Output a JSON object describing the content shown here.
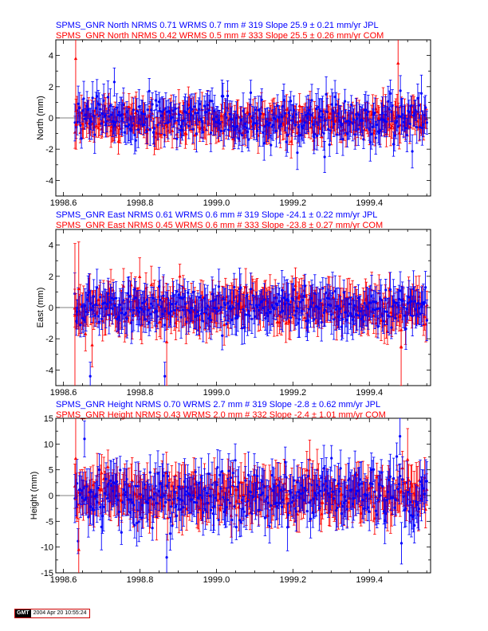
{
  "chart_data": [
    {
      "type": "scatter",
      "panel": "north",
      "header_lines": [
        {
          "text": "SPMS_GNR North NRMS 0.71 WRMS  0.7 mm # 319 Slope   25.9 ±  0.21 mm/yr JPL",
          "color": "#0000ff"
        },
        {
          "text": "SPMS_GNR North NRMS 0.42 WRMS  0.5 mm # 333 Slope   25.5 ±  0.26 mm/yr COM",
          "color": "#ff0000"
        }
      ],
      "ylabel": "North (mm)",
      "xlim": [
        1998.58,
        1999.56
      ],
      "ylim": [
        -5,
        5
      ],
      "x_ticks": [
        1998.6,
        1998.8,
        1999.0,
        1999.2,
        1999.4
      ],
      "x_tick_labels": [
        "1998.6",
        "1998.8",
        "1999.0",
        "1999.2",
        "1999.4"
      ],
      "y_ticks": [
        -4,
        -2,
        0,
        2,
        4
      ],
      "y_tick_labels": [
        "-4",
        "-2",
        "0",
        "2",
        "4"
      ],
      "grid": false,
      "series": [
        {
          "color": "#0000ff",
          "marker": "circle",
          "count": 319,
          "x_range": [
            1998.63,
            1999.55
          ],
          "y_mean": 0.0,
          "y_scatter": 0.7,
          "err_mean": 0.9
        },
        {
          "color": "#ff0000",
          "marker": "triangle",
          "count": 333,
          "x_range": [
            1998.63,
            1999.55
          ],
          "y_mean": -0.2,
          "y_scatter": 0.5,
          "err_mean": 0.85
        }
      ],
      "outliers": [
        {
          "x": 1998.632,
          "y": 3.8,
          "err": 3.4,
          "color": "#ff0000"
        },
        {
          "x": 1998.633,
          "y": -0.4,
          "err": 1.6,
          "color": "#ff0000"
        },
        {
          "x": 1999.475,
          "y": 3.5,
          "err": 3.2,
          "color": "#ff0000"
        },
        {
          "x": 1998.733,
          "y": 2.3,
          "err": 0.9,
          "color": "#0000ff"
        },
        {
          "x": 1999.283,
          "y": -2.5,
          "err": 1.0,
          "color": "#0000ff"
        }
      ]
    },
    {
      "type": "scatter",
      "panel": "east",
      "header_lines": [
        {
          "text": "SPMS_GNR East NRMS 0.61 WRMS  0.6 mm # 319 Slope  -24.1 ±  0.22 mm/yr JPL",
          "color": "#0000ff"
        },
        {
          "text": "SPMS_GNR East NRMS 0.45 WRMS  0.6 mm # 333 Slope  -23.8 ±  0.27 mm/yr COM",
          "color": "#ff0000"
        }
      ],
      "ylabel": "East (mm)",
      "xlim": [
        1998.58,
        1999.56
      ],
      "ylim": [
        -5,
        5
      ],
      "x_ticks": [
        1998.6,
        1998.8,
        1999.0,
        1999.2,
        1999.4
      ],
      "x_tick_labels": [
        "1998.6",
        "1998.8",
        "1999.0",
        "1999.2",
        "1999.4"
      ],
      "y_ticks": [
        -4,
        -2,
        0,
        2,
        4
      ],
      "y_tick_labels": [
        "-4",
        "-2",
        "0",
        "2",
        "4"
      ],
      "grid": false,
      "series": [
        {
          "color": "#0000ff",
          "marker": "circle",
          "count": 319,
          "x_range": [
            1998.63,
            1999.55
          ],
          "y_mean": 0.0,
          "y_scatter": 0.6,
          "err_mean": 1.0
        },
        {
          "color": "#ff0000",
          "marker": "triangle",
          "count": 333,
          "x_range": [
            1998.63,
            1999.55
          ],
          "y_mean": 0.0,
          "y_scatter": 0.6,
          "err_mean": 1.0
        }
      ],
      "outliers": [
        {
          "x": 1998.63,
          "y": -0.5,
          "err": 4.6,
          "color": "#ff0000"
        },
        {
          "x": 1998.64,
          "y": 1.2,
          "err": 3.0,
          "color": "#ff0000"
        },
        {
          "x": 1998.675,
          "y": -2.4,
          "err": 1.4,
          "color": "#ff0000"
        },
        {
          "x": 1998.87,
          "y": -2.2,
          "err": 2.8,
          "color": "#ff0000"
        },
        {
          "x": 1999.483,
          "y": -2.5,
          "err": 2.5,
          "color": "#ff0000"
        },
        {
          "x": 1998.67,
          "y": -4.4,
          "err": 0.9,
          "color": "#0000ff"
        },
        {
          "x": 1998.865,
          "y": -4.4,
          "err": 0.9,
          "color": "#0000ff"
        }
      ]
    },
    {
      "type": "scatter",
      "panel": "height",
      "header_lines": [
        {
          "text": "SPMS_GNR Height NRMS 0.70 WRMS  2.7 mm # 319 Slope   -2.8 ±  0.62 mm/yr JPL",
          "color": "#0000ff"
        },
        {
          "text": "SPMS_GNR Height NRMS 0.43 WRMS  2.0 mm # 332 Slope   -2.4 ±  1.01 mm/yr COM",
          "color": "#ff0000"
        }
      ],
      "ylabel": "Height (mm)",
      "xlim": [
        1998.58,
        1999.56
      ],
      "ylim": [
        -15,
        15
      ],
      "x_ticks": [
        1998.6,
        1998.8,
        1999.0,
        1999.2,
        1999.4
      ],
      "x_tick_labels": [
        "1998.6",
        "1998.8",
        "1999.0",
        "1999.2",
        "1999.4"
      ],
      "y_ticks": [
        -15,
        -10,
        -5,
        0,
        5,
        10,
        15
      ],
      "y_tick_labels": [
        "-15",
        "-10",
        "-5",
        "0",
        "5",
        "10",
        "15"
      ],
      "grid": false,
      "series": [
        {
          "color": "#0000ff",
          "marker": "circle",
          "count": 319,
          "x_range": [
            1998.63,
            1999.55
          ],
          "y_mean": 0.0,
          "y_scatter": 2.7,
          "err_mean": 3.5
        },
        {
          "color": "#ff0000",
          "marker": "triangle",
          "count": 332,
          "x_range": [
            1998.63,
            1999.55
          ],
          "y_mean": 0.0,
          "y_scatter": 2.0,
          "err_mean": 3.5
        }
      ],
      "outliers": [
        {
          "x": 1998.632,
          "y": 7.2,
          "err": 8.0,
          "color": "#ff0000"
        },
        {
          "x": 1998.64,
          "y": -10.5,
          "err": 6.0,
          "color": "#ff0000"
        },
        {
          "x": 1998.655,
          "y": 11.0,
          "err": 3.5,
          "color": "#0000ff"
        },
        {
          "x": 1998.87,
          "y": -12.0,
          "err": 4.5,
          "color": "#0000ff"
        },
        {
          "x": 1999.48,
          "y": 11.5,
          "err": 3.5,
          "color": "#0000ff"
        },
        {
          "x": 1999.5,
          "y": 7.0,
          "err": 6.0,
          "color": "#ff0000"
        }
      ]
    }
  ],
  "stamp": {
    "logo": "GMT",
    "text": "2004 Apr 20 10:55:24"
  }
}
